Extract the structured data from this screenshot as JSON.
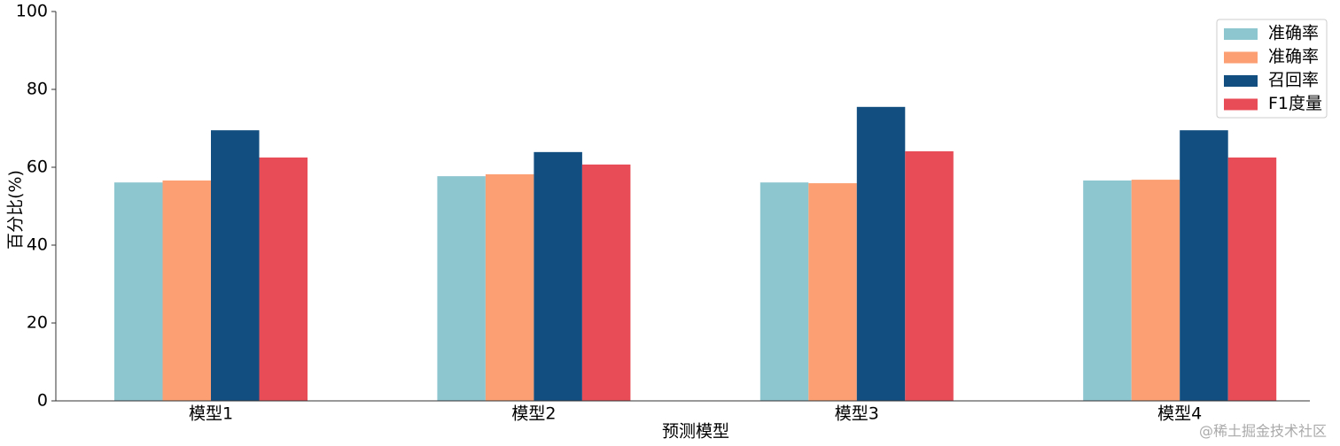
{
  "chart_data": {
    "type": "bar",
    "x_label": "预测模型",
    "y_label": "百分比(%)",
    "categories": [
      "模型1",
      "模型2",
      "模型3",
      "模型4"
    ],
    "series": [
      {
        "name": "准确率",
        "color": "#8ec6d0",
        "values": [
          56.1,
          57.7,
          56.1,
          56.6
        ]
      },
      {
        "name": "准确率",
        "color": "#fca074",
        "values": [
          56.6,
          58.2,
          55.9,
          56.8
        ]
      },
      {
        "name": "召回率",
        "color": "#124e80",
        "values": [
          69.5,
          63.9,
          75.5,
          69.5
        ]
      },
      {
        "name": "F1度量",
        "color": "#e84c56",
        "values": [
          62.5,
          60.7,
          64.1,
          62.5
        ]
      }
    ],
    "ylim": [
      0,
      100
    ],
    "yticks": [
      0,
      20,
      40,
      60,
      80,
      100
    ],
    "grid": false,
    "legend": "upper right"
  },
  "watermark": "@稀土掘金技术社区"
}
